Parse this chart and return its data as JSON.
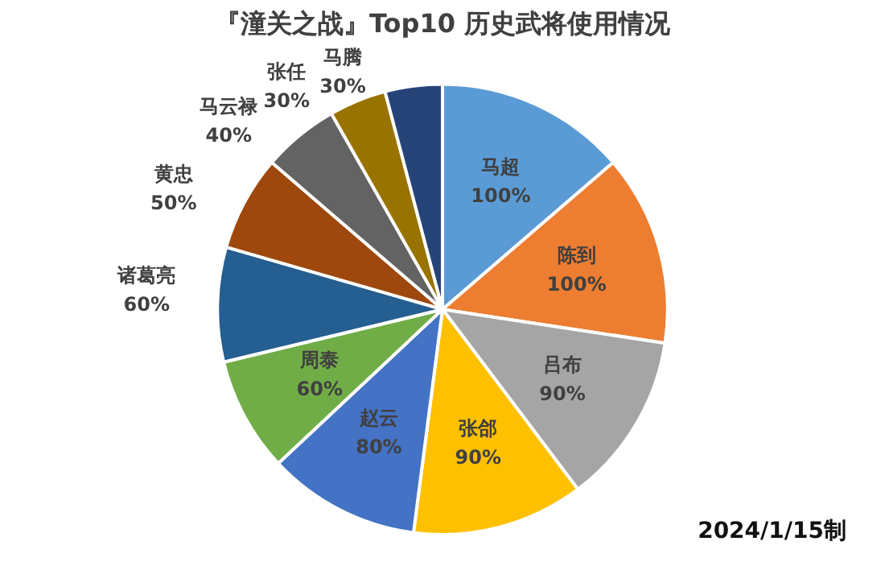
{
  "chart_data": {
    "type": "pie",
    "title": "『潼关之战』Top10 历史武将使用情况",
    "categories": [
      "马超",
      "陈到",
      "吕布",
      "张郃",
      "赵云",
      "周泰",
      "诸葛亮",
      "黄忠",
      "马云禄",
      "张任",
      "马腾"
    ],
    "values": [
      100,
      100,
      90,
      90,
      80,
      60,
      60,
      50,
      40,
      30,
      30
    ],
    "value_labels": [
      "100%",
      "100%",
      "90%",
      "90%",
      "80%",
      "60%",
      "60%",
      "50%",
      "40%",
      "30%",
      "30%"
    ],
    "colors": [
      "#5b9bd5",
      "#ed7d31",
      "#a5a5a5",
      "#ffc000",
      "#4472c4",
      "#70ad47",
      "#255e91",
      "#9e480e",
      "#636363",
      "#997300",
      "#264478"
    ],
    "legend": false,
    "annotations": [
      "2024/1/15制"
    ]
  }
}
